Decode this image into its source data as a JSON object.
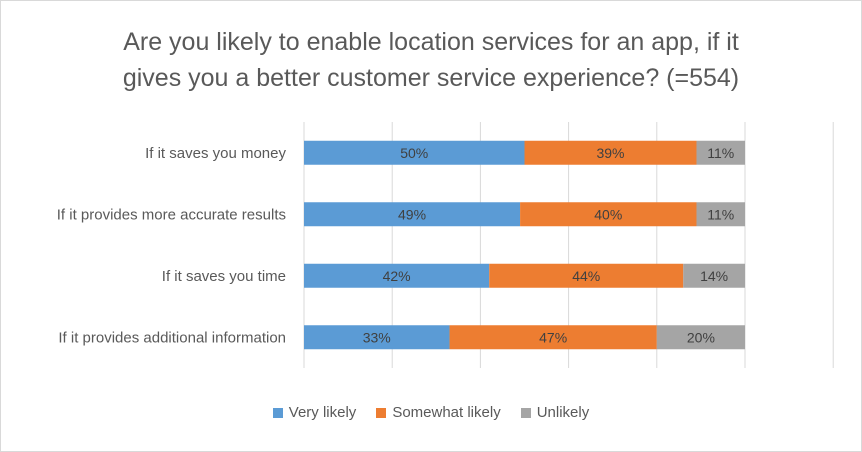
{
  "chart_data": {
    "type": "bar",
    "orientation": "horizontal",
    "stacked": "percent",
    "title_lines": [
      "Are you likely to enable location services for an app, if it",
      "gives you a better customer service experience? (=554)"
    ],
    "categories": [
      "If it saves you money",
      "If it provides more accurate results",
      "If it saves you time",
      "If it provides additional information"
    ],
    "series": [
      {
        "name": "Very likely",
        "color": "#5b9bd5",
        "values": [
          50,
          49,
          42,
          33
        ],
        "labels": [
          "50%",
          "49%",
          "42%",
          "33%"
        ]
      },
      {
        "name": "Somewhat likely",
        "color": "#ed7d31",
        "values": [
          39,
          40,
          44,
          47
        ],
        "labels": [
          "39%",
          "40%",
          "44%",
          "47%"
        ]
      },
      {
        "name": "Unlikely",
        "color": "#a5a5a5",
        "values": [
          11,
          11,
          14,
          20
        ],
        "labels": [
          "11%",
          "11%",
          "14%",
          "20%"
        ]
      }
    ],
    "xlim": [
      0,
      120
    ],
    "grid": true,
    "legend_position": "bottom"
  }
}
